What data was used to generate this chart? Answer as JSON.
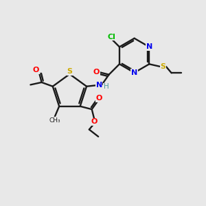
{
  "background_color": "#e8e8e8",
  "bond_color": "#1a1a1a",
  "colors": {
    "N": "#0000ee",
    "O": "#ff0000",
    "S": "#ccaa00",
    "Cl": "#00bb00",
    "H": "#4a9a9a",
    "C": "#1a1a1a"
  },
  "figsize": [
    3.0,
    3.0
  ],
  "dpi": 100
}
